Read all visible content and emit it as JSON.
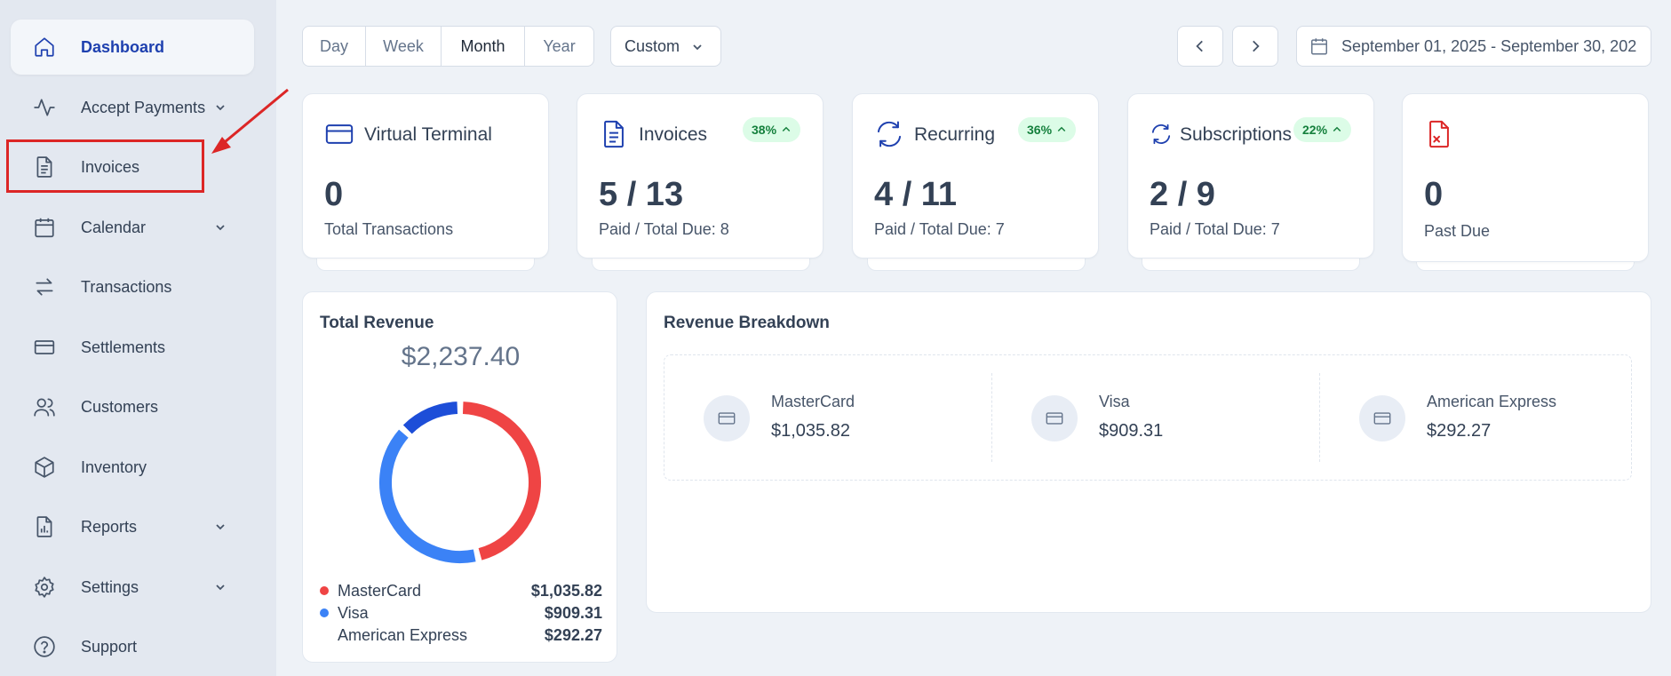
{
  "sidebar": {
    "items": [
      {
        "label": "Dashboard",
        "icon": "home-icon",
        "active": true
      },
      {
        "label": "Accept Payments",
        "icon": "activity-icon",
        "expandable": true
      },
      {
        "label": "Invoices",
        "icon": "file-text-icon",
        "highlighted": true
      },
      {
        "label": "Calendar",
        "icon": "calendar-icon",
        "expandable": true
      },
      {
        "label": "Transactions",
        "icon": "arrows-swap-icon"
      },
      {
        "label": "Settlements",
        "icon": "credit-card-icon"
      },
      {
        "label": "Customers",
        "icon": "users-icon"
      },
      {
        "label": "Inventory",
        "icon": "box-icon"
      },
      {
        "label": "Reports",
        "icon": "report-icon",
        "expandable": true
      },
      {
        "label": "Settings",
        "icon": "gear-icon",
        "expandable": true
      },
      {
        "label": "Support",
        "icon": "help-circle-icon"
      }
    ]
  },
  "toolbar": {
    "periods": [
      "Day",
      "Week",
      "Month",
      "Year"
    ],
    "selected_period": "Month",
    "custom_label": "Custom",
    "date_range": "September 01, 2025 - September 30, 202"
  },
  "cards": [
    {
      "title": "Virtual Terminal",
      "value": "0",
      "sub": "Total Transactions",
      "icon": "credit-card-icon"
    },
    {
      "title": "Invoices",
      "badge": "38%",
      "value": "5 / 13",
      "sub": "Paid / Total Due: 8",
      "icon": "file-text-icon"
    },
    {
      "title": "Recurring",
      "badge": "36%",
      "value": "4 / 11",
      "sub": "Paid / Total Due: 7",
      "icon": "refresh-icon"
    },
    {
      "title": "Subscriptions",
      "badge": "22%",
      "value": "2 / 9",
      "sub": "Paid / Total Due: 7",
      "icon": "refresh-icon"
    },
    {
      "title": "",
      "value": "0",
      "sub": "Past Due",
      "icon": "file-x-icon"
    }
  ],
  "revenue": {
    "title": "Total Revenue",
    "total": "$2,237.40",
    "legend": [
      {
        "name": "MasterCard",
        "value": "$1,035.82",
        "color": "#ef4444"
      },
      {
        "name": "Visa",
        "value": "$909.31",
        "color": "#3b82f6"
      },
      {
        "name": "American Express",
        "value": "$292.27",
        "color": "#1d4ed8"
      }
    ]
  },
  "breakdown": {
    "title": "Revenue Breakdown",
    "items": [
      {
        "name": "MasterCard",
        "value": "$1,035.82"
      },
      {
        "name": "Visa",
        "value": "$909.31"
      },
      {
        "name": "American Express",
        "value": "$292.27"
      }
    ]
  },
  "colors": {
    "accent": "#1e40af",
    "danger": "#dc2626",
    "success": "#15803d"
  }
}
